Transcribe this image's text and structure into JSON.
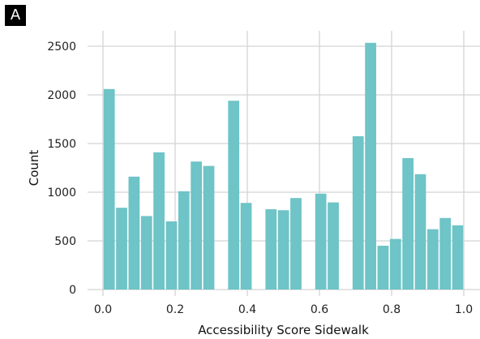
{
  "panel_label": "A",
  "chart_data": {
    "type": "bar",
    "subtype": "histogram",
    "xlabel": "Accessibility Score Sidewalk",
    "ylabel": "Count",
    "xlim": [
      0.0,
      1.0
    ],
    "ylim": [
      0,
      2600
    ],
    "x_ticks": [
      "0.0",
      "0.2",
      "0.4",
      "0.6",
      "0.8",
      "1.0"
    ],
    "y_ticks": [
      "0",
      "500",
      "1000",
      "1500",
      "2000",
      "2500"
    ],
    "bin_width": 0.0345,
    "bar_color": "#6ec4c6",
    "grid": true,
    "bins": [
      {
        "x0": 0.0,
        "x1": 0.0345,
        "count": 2060
      },
      {
        "x0": 0.0345,
        "x1": 0.069,
        "count": 840
      },
      {
        "x0": 0.069,
        "x1": 0.1035,
        "count": 1160
      },
      {
        "x0": 0.1035,
        "x1": 0.138,
        "count": 755
      },
      {
        "x0": 0.138,
        "x1": 0.1725,
        "count": 1410
      },
      {
        "x0": 0.1725,
        "x1": 0.207,
        "count": 700
      },
      {
        "x0": 0.207,
        "x1": 0.2415,
        "count": 1010
      },
      {
        "x0": 0.2415,
        "x1": 0.276,
        "count": 1315
      },
      {
        "x0": 0.276,
        "x1": 0.3105,
        "count": 1270
      },
      {
        "x0": 0.3105,
        "x1": 0.345,
        "count": 0
      },
      {
        "x0": 0.345,
        "x1": 0.3795,
        "count": 1940
      },
      {
        "x0": 0.3795,
        "x1": 0.414,
        "count": 890
      },
      {
        "x0": 0.414,
        "x1": 0.4485,
        "count": 0
      },
      {
        "x0": 0.4485,
        "x1": 0.483,
        "count": 825
      },
      {
        "x0": 0.483,
        "x1": 0.5175,
        "count": 815
      },
      {
        "x0": 0.5175,
        "x1": 0.552,
        "count": 940
      },
      {
        "x0": 0.552,
        "x1": 0.5865,
        "count": 0
      },
      {
        "x0": 0.5865,
        "x1": 0.621,
        "count": 985
      },
      {
        "x0": 0.621,
        "x1": 0.6555,
        "count": 895
      },
      {
        "x0": 0.6555,
        "x1": 0.69,
        "count": 0
      },
      {
        "x0": 0.69,
        "x1": 0.7245,
        "count": 1575
      },
      {
        "x0": 0.7245,
        "x1": 0.759,
        "count": 2535
      },
      {
        "x0": 0.759,
        "x1": 0.7935,
        "count": 450
      },
      {
        "x0": 0.7935,
        "x1": 0.828,
        "count": 520
      },
      {
        "x0": 0.828,
        "x1": 0.8625,
        "count": 1350
      },
      {
        "x0": 0.8625,
        "x1": 0.897,
        "count": 1185
      },
      {
        "x0": 0.897,
        "x1": 0.9315,
        "count": 620
      },
      {
        "x0": 0.9315,
        "x1": 0.966,
        "count": 735
      },
      {
        "x0": 0.966,
        "x1": 1.0,
        "count": 660
      }
    ]
  }
}
